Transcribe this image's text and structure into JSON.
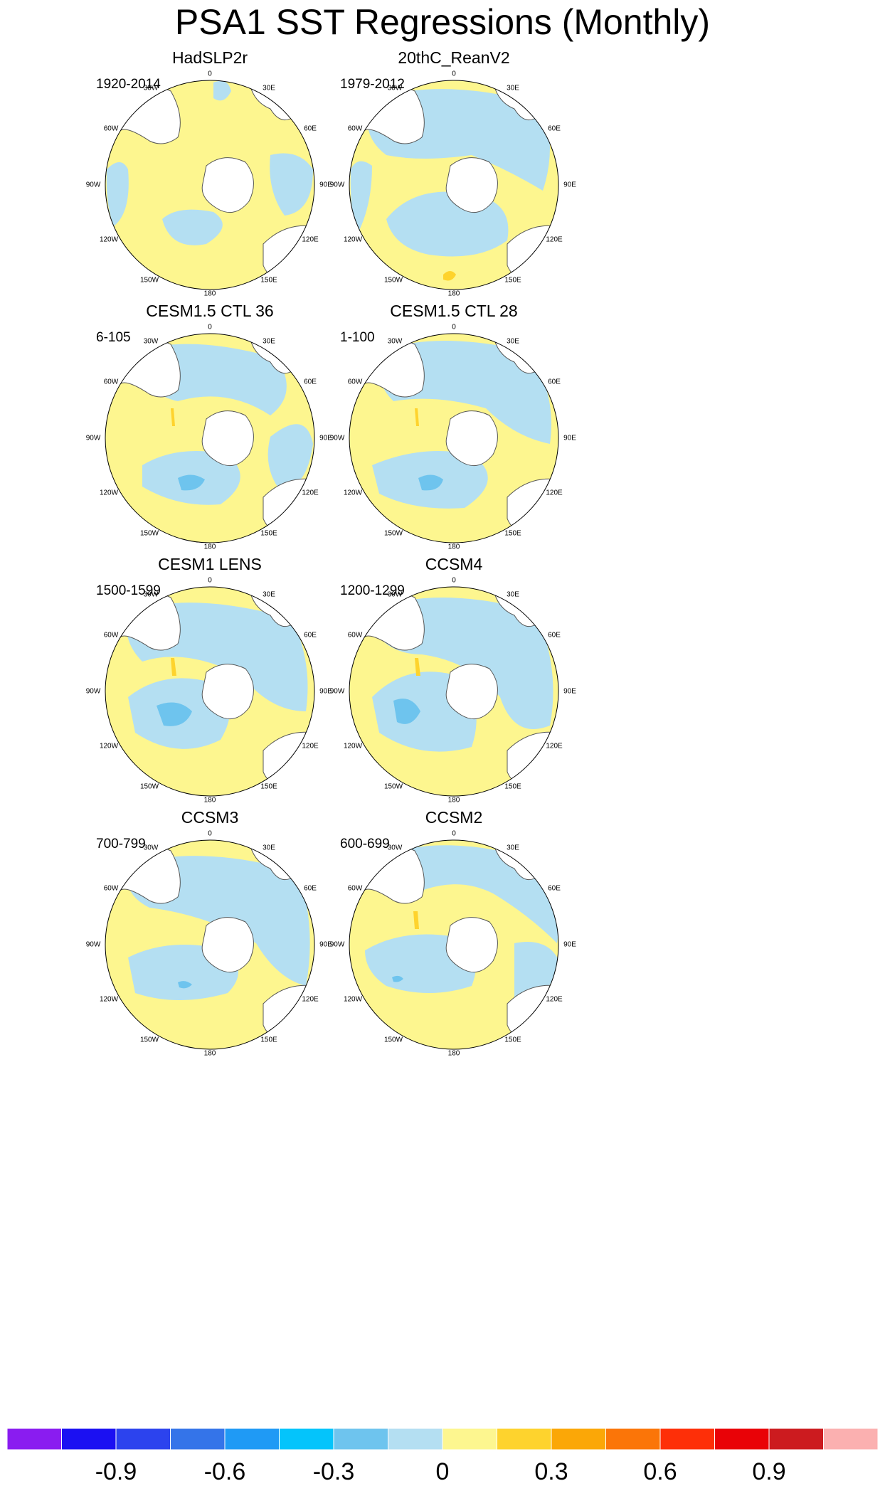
{
  "title": "PSA1 SST Regressions (Monthly)",
  "map_labels": {
    "top": "0",
    "ne": "30E",
    "e1": "60E",
    "e2": "90E",
    "e3": "120E",
    "se": "150E",
    "bottom": "180",
    "sw": "150W",
    "w3": "120W",
    "w2": "90W",
    "w1": "60W",
    "nw": "30W"
  },
  "colors": {
    "neg_high": "#6ec4ee",
    "neg_low": "#b4dff2",
    "pos_low": "#fdf68f",
    "pos_high": "#fed32d",
    "land": "#ffffff"
  },
  "panels": [
    {
      "title": "HadSLP2r",
      "period": "1920-2014"
    },
    {
      "title": "20thC_ReanV2",
      "period": "1979-2012"
    },
    {
      "title": "CESM1.5 CTL 36",
      "period": "6-105"
    },
    {
      "title": "CESM1.5 CTL 28",
      "period": "1-100"
    },
    {
      "title": "CESM1 LENS",
      "period": "1500-1599"
    },
    {
      "title": "CCSM4",
      "period": "1200-1299"
    },
    {
      "title": "CCSM3",
      "period": "700-799"
    },
    {
      "title": "CCSM2",
      "period": "600-699"
    }
  ],
  "chart_data": {
    "type": "heatmap",
    "colorbar": {
      "colors": [
        "#8a1cf0",
        "#1b10f2",
        "#2c43ee",
        "#3474e9",
        "#1f9af5",
        "#04c4fb",
        "#6ec4ee",
        "#b4dff2",
        "#fdf68f",
        "#fed32d",
        "#fba707",
        "#fb7508",
        "#fe2f08",
        "#e90207",
        "#cc1b1f",
        "#fbb0b0"
      ],
      "tick_labels": [
        "-0.9",
        "-0.6",
        "-0.3",
        "0",
        "0.3",
        "0.6",
        "0.9"
      ],
      "tick_values": [
        -0.9,
        -0.6,
        -0.3,
        0,
        0.3,
        0.6,
        0.9
      ]
    }
  }
}
